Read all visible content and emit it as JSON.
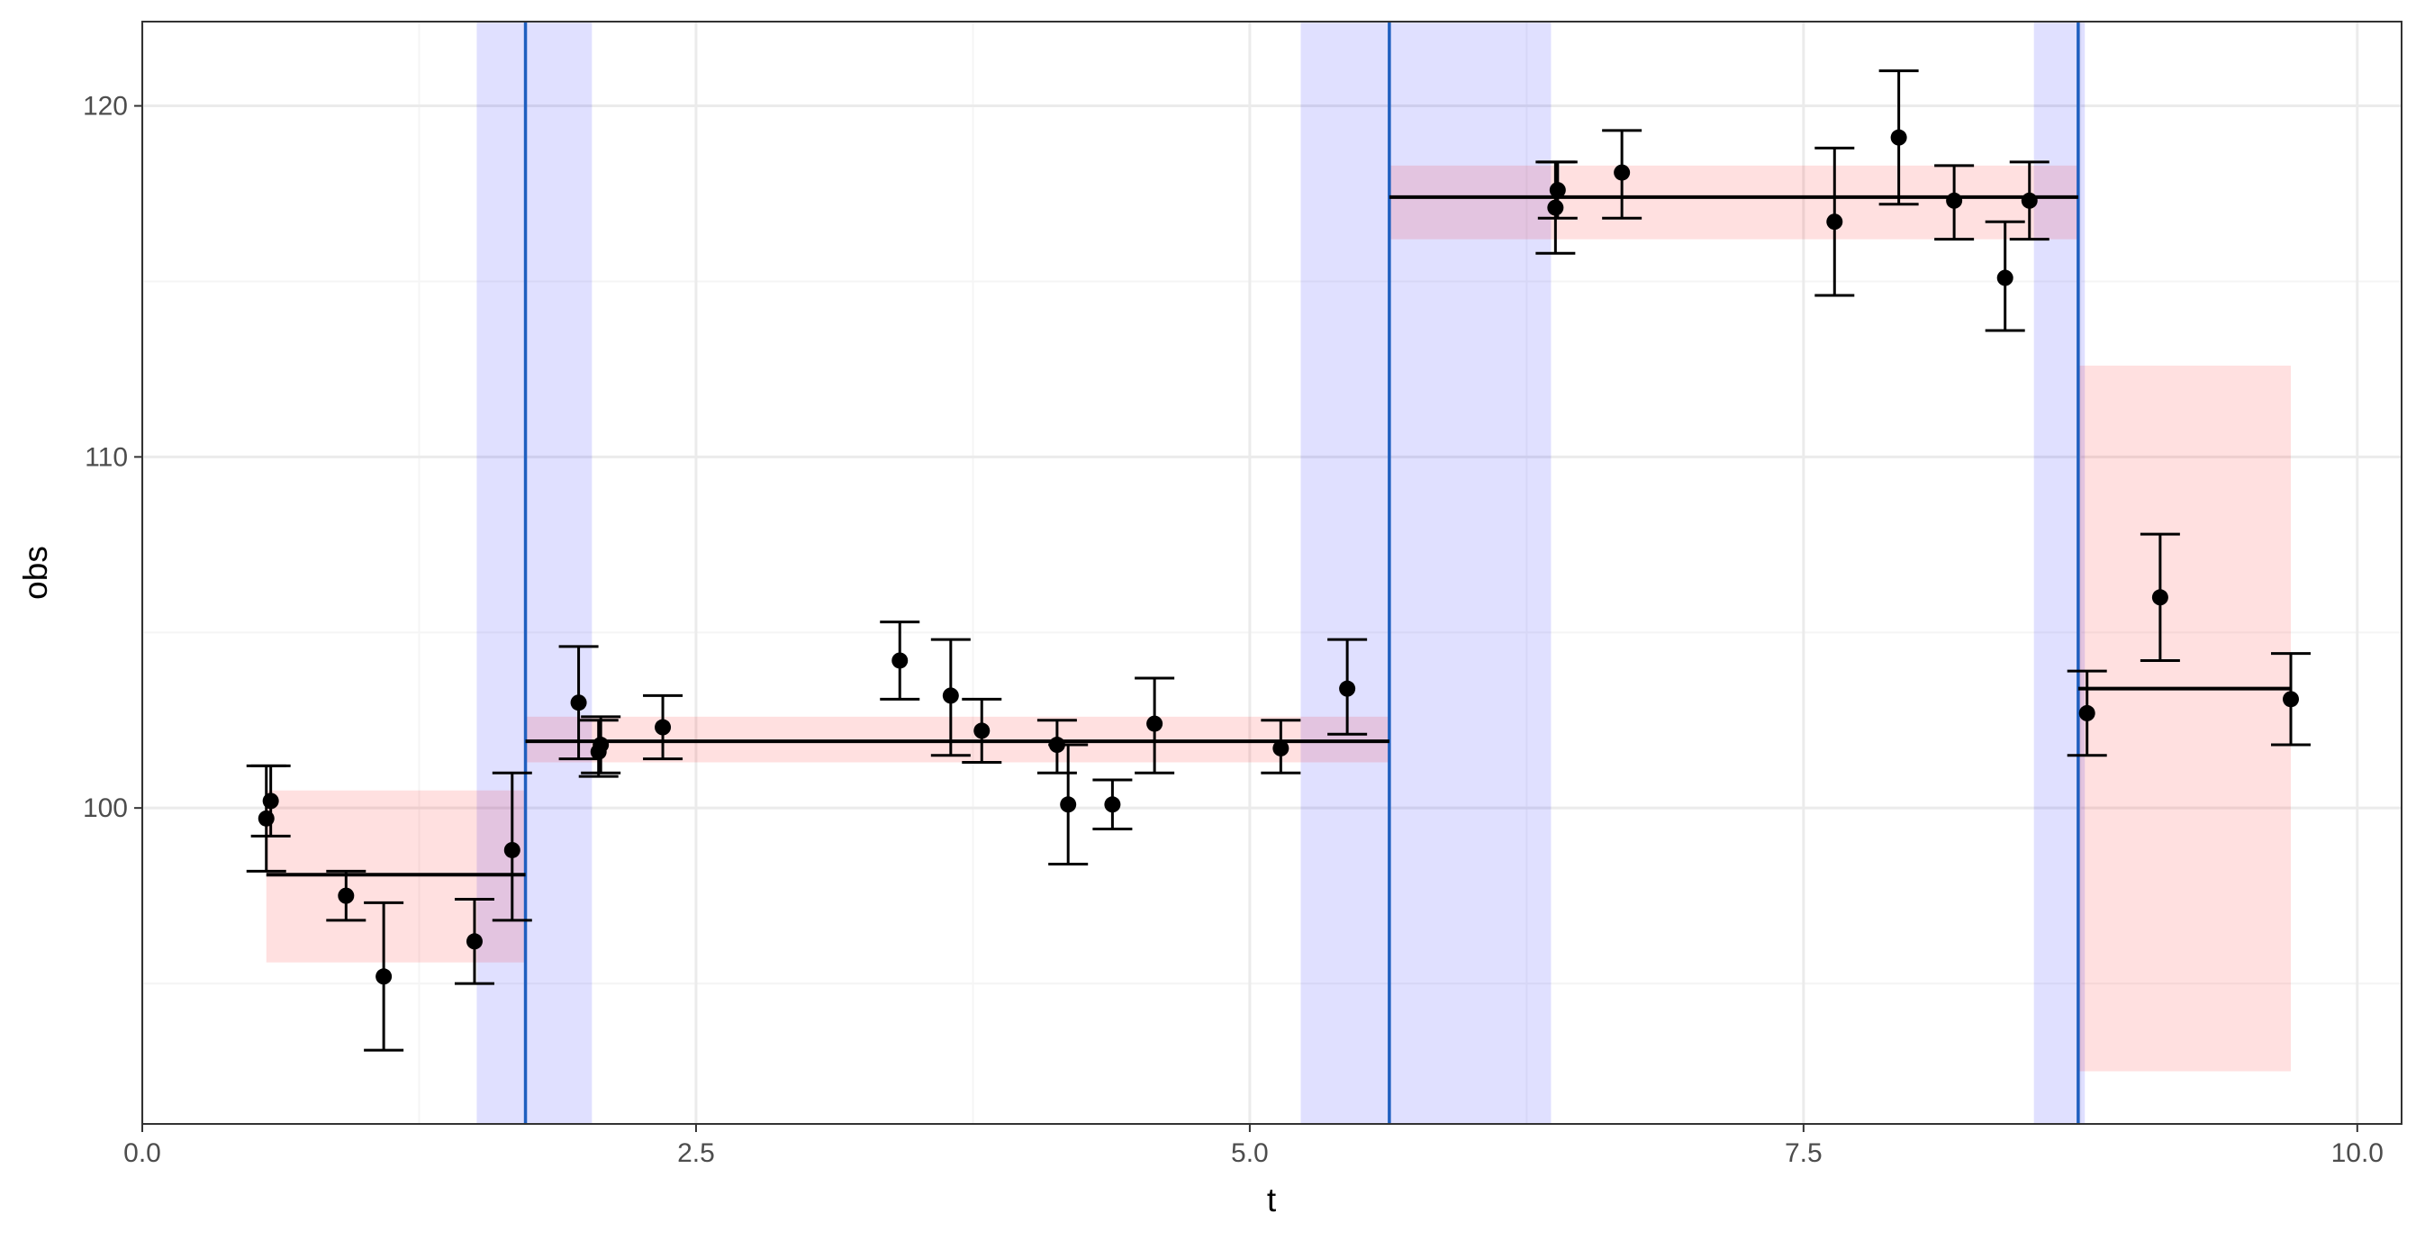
{
  "chart_data": {
    "type": "scatter",
    "title": "",
    "xlabel": "t",
    "ylabel": "obs",
    "xlim": [
      0,
      10.2
    ],
    "ylim": [
      91.0,
      122.4
    ],
    "x_ticks": [
      0,
      2.5,
      5,
      7.5,
      10
    ],
    "x_tick_labels": [
      "0.0",
      "2.5",
      "5.0",
      "7.5",
      "10.0"
    ],
    "y_ticks": [
      100,
      110,
      120
    ],
    "y_tick_labels": [
      "100",
      "110",
      "120"
    ],
    "grid": true,
    "legend": "none",
    "observations": [
      {
        "t": 0.56,
        "obs": 99.7,
        "lo": 98.2,
        "hi": 101.2
      },
      {
        "t": 0.58,
        "obs": 100.2,
        "lo": 99.2,
        "hi": 101.2
      },
      {
        "t": 0.92,
        "obs": 97.5,
        "lo": 96.8,
        "hi": 98.2
      },
      {
        "t": 1.09,
        "obs": 95.2,
        "lo": 93.1,
        "hi": 97.3
      },
      {
        "t": 1.5,
        "obs": 96.2,
        "lo": 95.0,
        "hi": 97.4
      },
      {
        "t": 1.67,
        "obs": 98.8,
        "lo": 96.8,
        "hi": 101.0
      },
      {
        "t": 1.97,
        "obs": 103.0,
        "lo": 101.4,
        "hi": 104.6
      },
      {
        "t": 2.06,
        "obs": 101.6,
        "lo": 100.9,
        "hi": 102.5
      },
      {
        "t": 2.07,
        "obs": 101.8,
        "lo": 101.0,
        "hi": 102.6
      },
      {
        "t": 2.35,
        "obs": 102.3,
        "lo": 101.4,
        "hi": 103.2
      },
      {
        "t": 3.42,
        "obs": 104.2,
        "lo": 103.1,
        "hi": 105.3
      },
      {
        "t": 3.65,
        "obs": 103.2,
        "lo": 101.5,
        "hi": 104.8
      },
      {
        "t": 3.79,
        "obs": 102.2,
        "lo": 101.3,
        "hi": 103.1
      },
      {
        "t": 4.13,
        "obs": 101.8,
        "lo": 101.0,
        "hi": 102.5
      },
      {
        "t": 4.18,
        "obs": 100.1,
        "lo": 98.4,
        "hi": 101.8
      },
      {
        "t": 4.38,
        "obs": 100.1,
        "lo": 99.4,
        "hi": 100.8
      },
      {
        "t": 4.57,
        "obs": 102.4,
        "lo": 101.0,
        "hi": 103.7
      },
      {
        "t": 5.14,
        "obs": 101.7,
        "lo": 101.0,
        "hi": 102.5
      },
      {
        "t": 5.44,
        "obs": 103.4,
        "lo": 102.1,
        "hi": 104.8
      },
      {
        "t": 6.38,
        "obs": 117.1,
        "lo": 115.8,
        "hi": 118.4
      },
      {
        "t": 6.39,
        "obs": 117.6,
        "lo": 116.8,
        "hi": 118.4
      },
      {
        "t": 6.68,
        "obs": 118.1,
        "lo": 116.8,
        "hi": 119.3
      },
      {
        "t": 7.64,
        "obs": 116.7,
        "lo": 114.6,
        "hi": 118.8
      },
      {
        "t": 7.93,
        "obs": 119.1,
        "lo": 117.2,
        "hi": 121.0
      },
      {
        "t": 8.18,
        "obs": 117.3,
        "lo": 116.2,
        "hi": 118.3
      },
      {
        "t": 8.41,
        "obs": 115.1,
        "lo": 113.6,
        "hi": 116.7
      },
      {
        "t": 8.52,
        "obs": 117.3,
        "lo": 116.2,
        "hi": 118.4
      },
      {
        "t": 8.78,
        "obs": 102.7,
        "lo": 101.5,
        "hi": 103.9
      },
      {
        "t": 9.11,
        "obs": 106.0,
        "lo": 104.2,
        "hi": 107.8
      },
      {
        "t": 9.7,
        "obs": 103.1,
        "lo": 101.8,
        "hi": 104.4
      }
    ],
    "segments": [
      {
        "x_start": 0.56,
        "x_end": 1.73,
        "level": 98.1,
        "band_lo": 95.6,
        "band_hi": 100.5
      },
      {
        "x_start": 1.73,
        "x_end": 5.63,
        "level": 101.9,
        "band_lo": 101.3,
        "band_hi": 102.6
      },
      {
        "x_start": 5.63,
        "x_end": 8.74,
        "level": 117.4,
        "band_lo": 116.2,
        "band_hi": 118.3
      },
      {
        "x_start": 8.74,
        "x_end": 9.7,
        "level": 103.4,
        "band_lo": 92.5,
        "band_hi": 112.6
      }
    ],
    "changepoints": [
      {
        "t": 1.73,
        "interval": [
          1.51,
          2.03
        ]
      },
      {
        "t": 5.63,
        "interval": [
          5.23,
          6.36
        ]
      },
      {
        "t": 8.74,
        "interval": [
          8.54,
          8.77
        ]
      }
    ],
    "colors": {
      "points": "#000000",
      "error_bars": "#000000",
      "segment_line": "#000000",
      "segment_band": "#ff0000",
      "changepoint_line": "#1f5fbf",
      "changepoint_interval": "#0000ff",
      "grid_major": "#ebebeb",
      "grid_minor": "#f5f5f5",
      "panel_border": "#333333"
    }
  }
}
